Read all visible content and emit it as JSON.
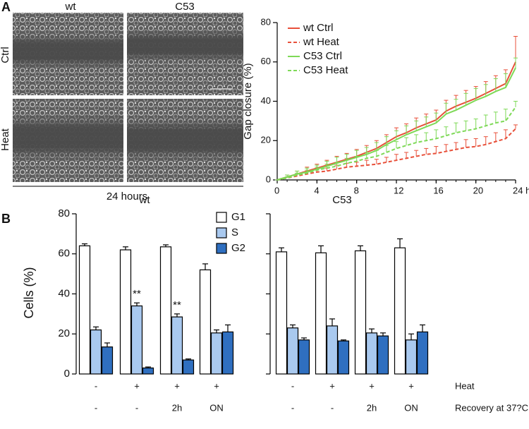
{
  "panels": {
    "A": {
      "label": "A",
      "columns": [
        "wt",
        "C53"
      ],
      "rows": [
        "Ctrl",
        "Heat"
      ],
      "caption": "24 hours"
    },
    "B": {
      "label": "B"
    }
  },
  "chart_data": [
    {
      "type": "line",
      "ylabel": "Gap closure (%)",
      "x": [
        0,
        1,
        2,
        3,
        4,
        5,
        6,
        7,
        8,
        9,
        10,
        11,
        12,
        13,
        14,
        15,
        16,
        17,
        18,
        19,
        20,
        21,
        22,
        23,
        24
      ],
      "xlim": [
        0,
        24
      ],
      "xticks": [
        0,
        4,
        8,
        12,
        16,
        20,
        {
          "value": 24,
          "label": "24 h"
        }
      ],
      "ylim": [
        0,
        80
      ],
      "yticks": [
        0,
        20,
        40,
        60,
        80
      ],
      "legend": "upper left",
      "series": [
        {
          "name": "wt Ctrl",
          "color": "#e8503a",
          "style": "solid",
          "values": [
            0,
            1.5,
            3,
            4.5,
            6,
            7.5,
            9,
            10.5,
            12,
            14,
            16,
            19,
            22,
            24,
            26.5,
            28.5,
            30.5,
            35,
            37.5,
            39.5,
            41.5,
            44,
            46.5,
            49,
            60
          ],
          "errors": [
            0,
            1,
            1.5,
            2,
            2,
            2.5,
            3,
            3,
            3.5,
            3.5,
            4,
            4,
            4.5,
            4.5,
            5,
            5,
            5,
            5.5,
            5.5,
            6,
            6,
            6,
            6.5,
            7,
            13
          ]
        },
        {
          "name": "wt Heat",
          "color": "#e8503a",
          "style": "dashed",
          "values": [
            0,
            1,
            2,
            3,
            4,
            4.5,
            5.5,
            6.5,
            7,
            7.5,
            8,
            9,
            10,
            11,
            12,
            13,
            13.5,
            14.5,
            15.5,
            16.5,
            17,
            18,
            19.5,
            21,
            26
          ],
          "errors": [
            0,
            0.5,
            1,
            1,
            1.5,
            1.5,
            2,
            2,
            2,
            2.5,
            2.5,
            2.5,
            3,
            3,
            3,
            3,
            3.5,
            3.5,
            3.5,
            4,
            4,
            4,
            4.5,
            4.5,
            2
          ]
        },
        {
          "name": "C53 Ctrl",
          "color": "#7ed957",
          "style": "solid",
          "values": [
            0,
            1.5,
            3,
            4,
            5.5,
            7,
            8.5,
            10,
            11.5,
            13,
            15,
            18,
            20.5,
            23,
            25,
            27,
            29,
            33.5,
            35.5,
            38,
            40.5,
            42.5,
            45,
            47,
            57
          ],
          "errors": [
            0,
            1,
            1.5,
            2,
            2,
            2.5,
            3,
            3,
            3.5,
            3.5,
            4,
            4,
            4.5,
            4.5,
            5,
            5,
            5,
            5.5,
            5.5,
            6,
            6,
            6,
            6.5,
            7,
            5
          ]
        },
        {
          "name": "C53 Heat",
          "color": "#7ed957",
          "style": "dashed",
          "values": [
            0,
            1,
            2.5,
            3.5,
            5,
            6,
            7,
            8.5,
            9.5,
            11,
            12,
            14,
            16,
            17.5,
            19,
            20,
            21,
            22.5,
            24,
            25,
            26,
            27.5,
            29,
            30,
            37
          ],
          "errors": [
            0,
            0.5,
            1,
            1.5,
            1.5,
            2,
            2,
            2.5,
            2.5,
            3,
            3,
            3.5,
            3.5,
            4,
            4,
            4,
            4.5,
            4.5,
            5,
            5,
            5,
            5.5,
            5.5,
            6,
            3
          ]
        }
      ]
    },
    {
      "type": "bar",
      "title": "wt",
      "ylabel": "Cells (%)",
      "categories": [
        [
          "-",
          "-"
        ],
        [
          "+",
          "-"
        ],
        [
          "+",
          "2h"
        ],
        [
          "+",
          "ON"
        ]
      ],
      "ylim": [
        0,
        80
      ],
      "yticks": [
        0,
        20,
        40,
        60,
        80
      ],
      "show_ytick_labels": true,
      "legend": "upper right",
      "annotations": [
        "**",
        "**"
      ],
      "series": [
        {
          "name": "G1",
          "color": "#ffffff",
          "values": [
            64,
            62,
            63.5,
            52
          ],
          "errors": [
            1,
            1.5,
            1,
            3
          ]
        },
        {
          "name": "S",
          "color": "#a9c9ef",
          "values": [
            22,
            34,
            28.5,
            20.5
          ],
          "errors": [
            1.5,
            1.5,
            1.5,
            1.5
          ]
        },
        {
          "name": "G2",
          "color": "#2f6fc0",
          "values": [
            13.5,
            3,
            7,
            21
          ],
          "errors": [
            2,
            0.5,
            0.5,
            3.5
          ]
        }
      ]
    },
    {
      "type": "bar",
      "title": "C53",
      "categories": [
        [
          "-",
          "-"
        ],
        [
          "+",
          "-"
        ],
        [
          "+",
          "2h"
        ],
        [
          "+",
          "ON"
        ]
      ],
      "category_rows": [
        "Heat",
        "Recovery at 37?C"
      ],
      "ylim": [
        0,
        80
      ],
      "yticks": [
        0,
        20,
        40,
        60,
        80
      ],
      "show_ytick_labels": false,
      "series": [
        {
          "name": "G1",
          "color": "#ffffff",
          "values": [
            61,
            60.5,
            61.5,
            63
          ],
          "errors": [
            2,
            3.5,
            2.5,
            4.5
          ]
        },
        {
          "name": "S",
          "color": "#a9c9ef",
          "values": [
            23,
            24,
            20.5,
            17
          ],
          "errors": [
            1.5,
            3.5,
            2,
            3
          ]
        },
        {
          "name": "G2",
          "color": "#2f6fc0",
          "values": [
            17,
            16.5,
            19,
            21
          ],
          "errors": [
            1,
            0.5,
            1.5,
            3.5
          ]
        }
      ]
    }
  ]
}
